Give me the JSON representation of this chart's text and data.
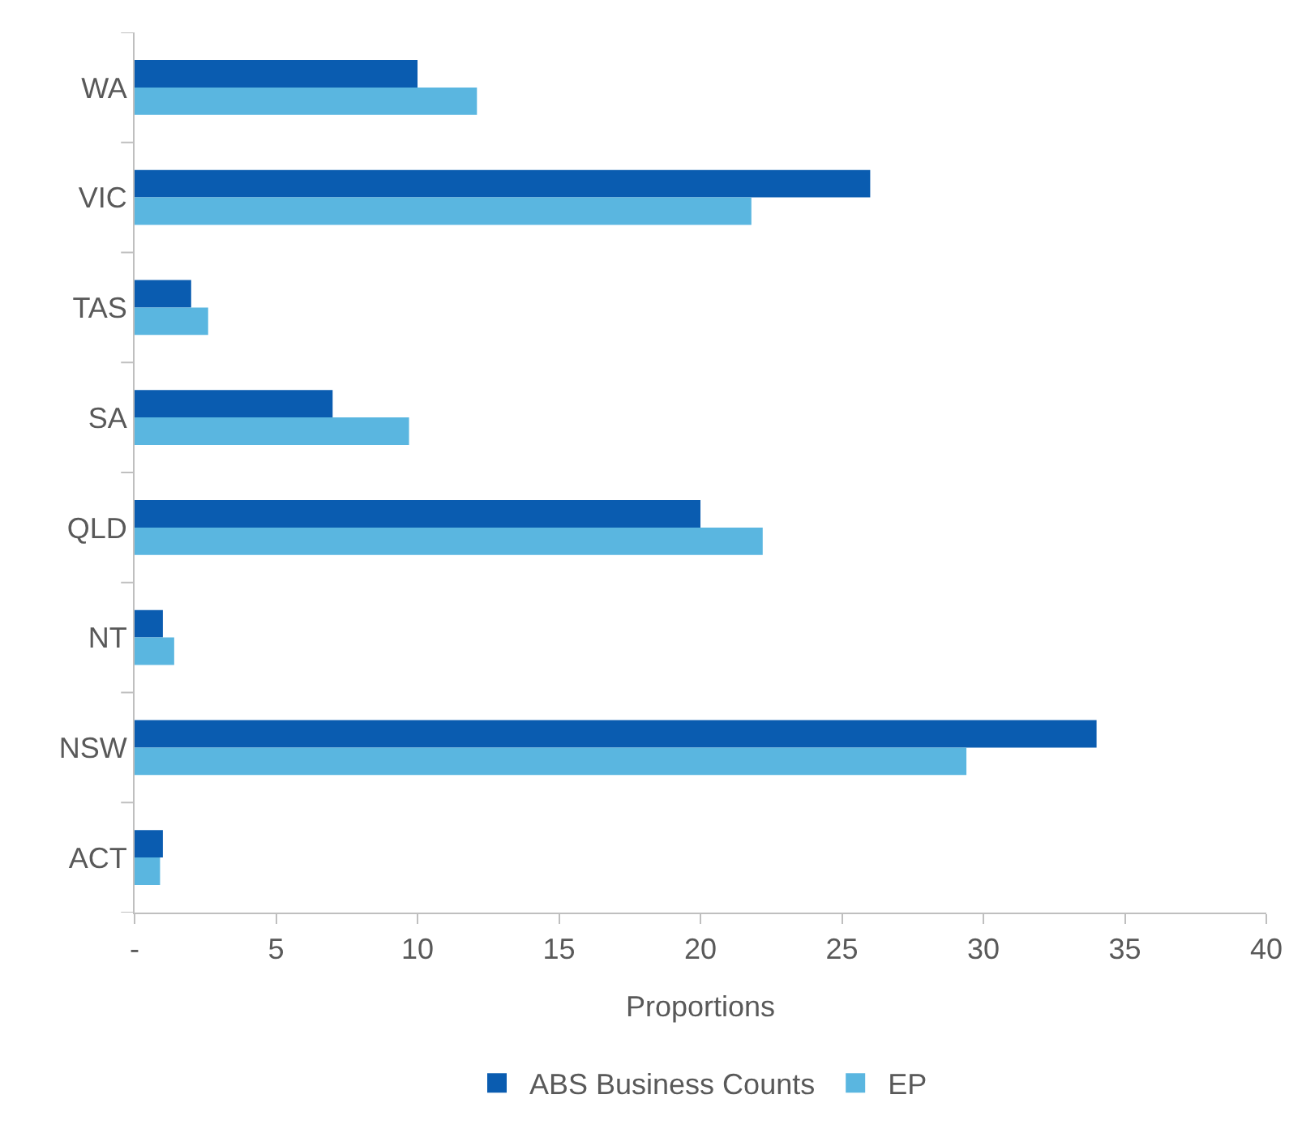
{
  "chart_data": {
    "type": "bar",
    "orientation": "horizontal",
    "xlabel": "Proportions",
    "categories": [
      "WA",
      "VIC",
      "TAS",
      "SA",
      "QLD",
      "NT",
      "NSW",
      "ACT"
    ],
    "series": [
      {
        "name": "ABS Business Counts",
        "color": "#0a5cb0",
        "values": [
          10,
          26,
          2,
          7,
          20,
          1,
          34,
          1
        ]
      },
      {
        "name": "EP",
        "color": "#5ab6e0",
        "values": [
          12.1,
          21.8,
          2.6,
          9.7,
          22.2,
          1.4,
          29.4,
          0.9
        ]
      }
    ],
    "xlim": [
      0,
      40
    ],
    "xticks": [
      {
        "value": 0,
        "label": "-"
      },
      5,
      10,
      15,
      20,
      25,
      30,
      35,
      40
    ],
    "grid": false,
    "legend": "bottom"
  }
}
